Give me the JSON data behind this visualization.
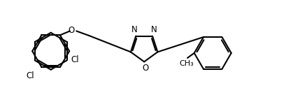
{
  "bg_color": "#ffffff",
  "line_color": "#000000",
  "line_width": 1.5,
  "font_size": 8.5,
  "figsize": [
    4.1,
    1.46
  ],
  "dpi": 100,
  "xlim": [
    0,
    10.5
  ],
  "ylim": [
    0,
    3.65
  ]
}
